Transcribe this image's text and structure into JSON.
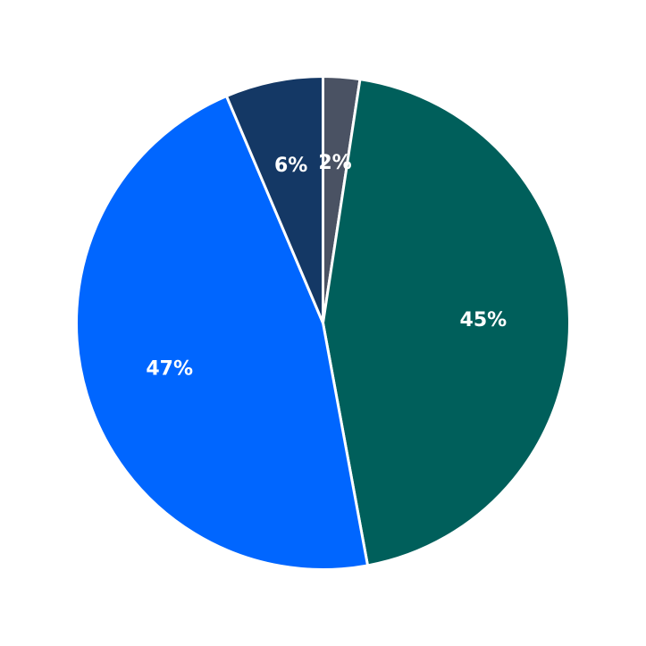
{
  "chart_data": {
    "type": "pie",
    "title": "",
    "slices": [
      {
        "label": "2%",
        "value": 2.4,
        "color": "#4a5263"
      },
      {
        "label": "45%",
        "value": 44.7,
        "color": "#005f5b"
      },
      {
        "label": "47%",
        "value": 46.5,
        "color": "#0066ff"
      },
      {
        "label": "6%",
        "value": 6.4,
        "color": "#143865"
      }
    ],
    "start_angle": "top",
    "direction": "clockwise",
    "legend": "none",
    "background": "#ffffff",
    "separator_color": "#ffffff"
  }
}
